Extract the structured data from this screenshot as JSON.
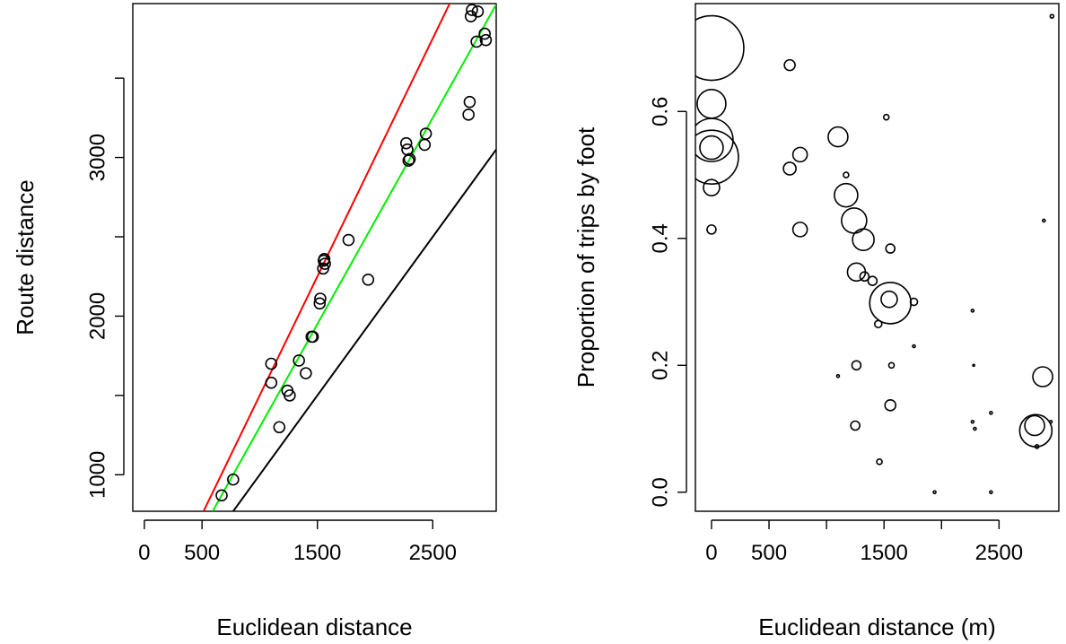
{
  "chart_data": [
    {
      "type": "scatter",
      "xlabel": "Euclidean distance",
      "ylabel": "Route distance",
      "xlim": [
        -100,
        3050
      ],
      "ylim": [
        770,
        3970
      ],
      "xticks": [
        0,
        500,
        1500,
        2500
      ],
      "yticks": [
        1000,
        1500,
        2000,
        2500,
        3000,
        3500
      ],
      "ytick_labels": [
        "1000",
        "",
        "2000",
        "",
        "3000",
        ""
      ],
      "points": [
        {
          "x": 670,
          "y": 870
        },
        {
          "x": 770,
          "y": 970
        },
        {
          "x": 1100,
          "y": 1700
        },
        {
          "x": 1100,
          "y": 1580
        },
        {
          "x": 1170,
          "y": 1300
        },
        {
          "x": 1240,
          "y": 1530
        },
        {
          "x": 1260,
          "y": 1500
        },
        {
          "x": 1340,
          "y": 1720
        },
        {
          "x": 1400,
          "y": 1640
        },
        {
          "x": 1450,
          "y": 1870
        },
        {
          "x": 1460,
          "y": 1870
        },
        {
          "x": 1520,
          "y": 2080
        },
        {
          "x": 1525,
          "y": 2110
        },
        {
          "x": 1550,
          "y": 2300
        },
        {
          "x": 1555,
          "y": 2350
        },
        {
          "x": 1560,
          "y": 2360
        },
        {
          "x": 1565,
          "y": 2330
        },
        {
          "x": 1770,
          "y": 2480
        },
        {
          "x": 1940,
          "y": 2230
        },
        {
          "x": 2270,
          "y": 3090
        },
        {
          "x": 2280,
          "y": 3050
        },
        {
          "x": 2290,
          "y": 2980
        },
        {
          "x": 2300,
          "y": 2990
        },
        {
          "x": 2430,
          "y": 3080
        },
        {
          "x": 2440,
          "y": 3150
        },
        {
          "x": 2810,
          "y": 3270
        },
        {
          "x": 2820,
          "y": 3350
        },
        {
          "x": 2830,
          "y": 3890
        },
        {
          "x": 2840,
          "y": 3930
        },
        {
          "x": 2880,
          "y": 3730
        },
        {
          "x": 2890,
          "y": 3920
        },
        {
          "x": 2950,
          "y": 3780
        },
        {
          "x": 2960,
          "y": 3740
        }
      ],
      "lines": [
        {
          "color": "#ff0000",
          "intercept": 0,
          "slope": 1.5
        },
        {
          "color": "#00ee00",
          "intercept": 0,
          "slope": 1.3
        },
        {
          "color": "#000000",
          "intercept": 0,
          "slope": 1.0
        }
      ]
    },
    {
      "type": "scatter",
      "xlabel": "Euclidean distance (m)",
      "ylabel": "Proportion of trips by foot",
      "xlim": [
        -140,
        3020
      ],
      "ylim": [
        -0.03,
        0.77
      ],
      "xticks": [
        0,
        500,
        1000,
        1500,
        2000,
        2500
      ],
      "xtick_labels": [
        "0",
        "500",
        "",
        "1500",
        "",
        "2500"
      ],
      "yticks": [
        0.0,
        0.2,
        0.4,
        0.6
      ],
      "ytick_labels": [
        "0.0",
        "0.2",
        "0.4",
        "0.6"
      ],
      "points": [
        {
          "x": 0,
          "y": 0.7,
          "size": 36
        },
        {
          "x": 0,
          "y": 0.612,
          "size": 16
        },
        {
          "x": 0,
          "y": 0.555,
          "size": 24
        },
        {
          "x": 0,
          "y": 0.528,
          "size": 30
        },
        {
          "x": 0,
          "y": 0.543,
          "size": 13
        },
        {
          "x": 0,
          "y": 0.48,
          "size": 9
        },
        {
          "x": 0,
          "y": 0.414,
          "size": 5
        },
        {
          "x": 680,
          "y": 0.673,
          "size": 6
        },
        {
          "x": 680,
          "y": 0.51,
          "size": 7
        },
        {
          "x": 770,
          "y": 0.532,
          "size": 8
        },
        {
          "x": 770,
          "y": 0.414,
          "size": 8
        },
        {
          "x": 1100,
          "y": 0.56,
          "size": 11
        },
        {
          "x": 1100,
          "y": 0.183,
          "size": 1.5
        },
        {
          "x": 1170,
          "y": 0.5,
          "size": 3
        },
        {
          "x": 1170,
          "y": 0.468,
          "size": 13
        },
        {
          "x": 1240,
          "y": 0.428,
          "size": 14
        },
        {
          "x": 1250,
          "y": 0.105,
          "size": 5
        },
        {
          "x": 1260,
          "y": 0.2,
          "size": 5
        },
        {
          "x": 1260,
          "y": 0.347,
          "size": 10
        },
        {
          "x": 1320,
          "y": 0.398,
          "size": 12
        },
        {
          "x": 1330,
          "y": 0.34,
          "size": 5
        },
        {
          "x": 1400,
          "y": 0.333,
          "size": 5
        },
        {
          "x": 1450,
          "y": 0.265,
          "size": 4
        },
        {
          "x": 1460,
          "y": 0.048,
          "size": 3
        },
        {
          "x": 1520,
          "y": 0.591,
          "size": 3
        },
        {
          "x": 1545,
          "y": 0.304,
          "size": 9
        },
        {
          "x": 1555,
          "y": 0.298,
          "size": 23
        },
        {
          "x": 1555,
          "y": 0.384,
          "size": 5
        },
        {
          "x": 1555,
          "y": 0.137,
          "size": 6
        },
        {
          "x": 1565,
          "y": 0.2,
          "size": 3
        },
        {
          "x": 1760,
          "y": 0.3,
          "size": 4
        },
        {
          "x": 1760,
          "y": 0.23,
          "size": 1.5
        },
        {
          "x": 1940,
          "y": 0.0,
          "size": 1.5
        },
        {
          "x": 2270,
          "y": 0.286,
          "size": 1.5
        },
        {
          "x": 2270,
          "y": 0.111,
          "size": 1.5
        },
        {
          "x": 2280,
          "y": 0.2,
          "size": 1
        },
        {
          "x": 2290,
          "y": 0.1,
          "size": 1.5
        },
        {
          "x": 2430,
          "y": 0.125,
          "size": 1.5
        },
        {
          "x": 2430,
          "y": 0.0,
          "size": 1.5
        },
        {
          "x": 2810,
          "y": 0.105,
          "size": 11
        },
        {
          "x": 2820,
          "y": 0.097,
          "size": 18
        },
        {
          "x": 2830,
          "y": 0.072,
          "size": 2
        },
        {
          "x": 2880,
          "y": 0.182,
          "size": 11
        },
        {
          "x": 2890,
          "y": 0.428,
          "size": 1.5
        },
        {
          "x": 2950,
          "y": 0.111,
          "size": 1.5
        },
        {
          "x": 2960,
          "y": 0.75,
          "size": 2
        }
      ]
    }
  ]
}
